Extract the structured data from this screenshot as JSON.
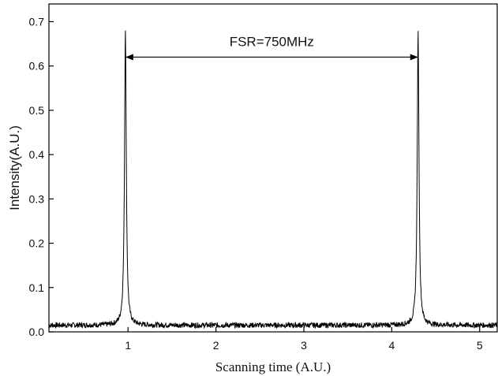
{
  "chart_data": {
    "type": "line",
    "title": "",
    "xlabel": "Scanning time (A.U.)",
    "ylabel": "Intensity(A.U.)",
    "xlim": [
      0.1,
      5.2
    ],
    "ylim": [
      0.0,
      0.74
    ],
    "xticks": [
      1,
      2,
      3,
      4,
      5
    ],
    "xtick_labels": [
      "1",
      "2",
      "3",
      "4",
      "5"
    ],
    "yticks": [
      0.0,
      0.1,
      0.2,
      0.3,
      0.4,
      0.5,
      0.6,
      0.7
    ],
    "ytick_labels": [
      "0.0",
      "0.1",
      "0.2",
      "0.3",
      "0.4",
      "0.5",
      "0.6",
      "0.7"
    ],
    "grid": false,
    "legend": "none",
    "series": [
      {
        "color": "#000000",
        "baseline": 0.015,
        "peaks": [
          {
            "x": 0.97,
            "y": 0.68
          },
          {
            "x": 4.3,
            "y": 0.675
          }
        ]
      }
    ],
    "annotations": [
      {
        "text": "FSR=750MHz",
        "type": "double-arrow",
        "x_start": 0.97,
        "x_end": 4.3,
        "y": 0.62
      }
    ]
  }
}
